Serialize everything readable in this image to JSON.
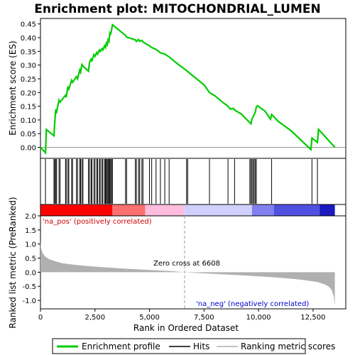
{
  "chart_data": {
    "type": "line",
    "title": "Enrichment plot: MITOCHONDRIAL_LUMEN",
    "xlabel": "Rank in Ordered Dataset",
    "xlim": [
      0,
      14000
    ],
    "x_ticks": [
      0,
      2500,
      5000,
      7500,
      10000,
      12500
    ],
    "x_tick_labels": [
      "0",
      "2,500",
      "5,000",
      "7,500",
      "10,000",
      "12,500"
    ],
    "es_panel": {
      "ylabel": "Enrichment score (ES)",
      "ylim": [
        -0.04,
        0.47
      ],
      "y_ticks": [
        0.0,
        0.05,
        0.1,
        0.15,
        0.2,
        0.25,
        0.3,
        0.35,
        0.4,
        0.45
      ],
      "y_tick_labels": [
        "0.00",
        "0.05",
        "0.10",
        "0.15",
        "0.20",
        "0.25",
        "0.30",
        "0.35",
        "0.40",
        "0.45"
      ],
      "series": [
        {
          "name": "Enrichment profile",
          "color": "#00cc00",
          "x": [
            0,
            230,
            270,
            620,
            650,
            700,
            740,
            850,
            900,
            1150,
            1180,
            1260,
            1300,
            1430,
            1470,
            1650,
            1700,
            1800,
            1840,
            1900,
            1950,
            2200,
            2250,
            2320,
            2360,
            2450,
            2500,
            2580,
            2620,
            2700,
            2740,
            2820,
            2860,
            2940,
            2980,
            3020,
            3060,
            3100,
            3140,
            3180,
            3220,
            3260,
            3300,
            3900,
            3950,
            4350,
            4400,
            4500,
            4550,
            4650,
            4700,
            5000,
            5100,
            5300,
            5500,
            5700,
            5900,
            6200,
            6500,
            6700,
            7000,
            7500,
            7750,
            8000,
            8300,
            8600,
            8700,
            8850,
            8900,
            9200,
            9500,
            9650,
            9700,
            9750,
            9800,
            9850,
            9900,
            9950,
            10300,
            10550,
            10600,
            10900,
            11500,
            12400,
            12450,
            12700,
            12750,
            13500
          ],
          "y": [
            0.0,
            -0.02,
            0.065,
            0.042,
            0.088,
            0.138,
            0.13,
            0.172,
            0.165,
            0.19,
            0.183,
            0.222,
            0.213,
            0.245,
            0.237,
            0.258,
            0.25,
            0.282,
            0.274,
            0.302,
            0.296,
            0.278,
            0.31,
            0.322,
            0.316,
            0.338,
            0.332,
            0.346,
            0.34,
            0.355,
            0.35,
            0.36,
            0.355,
            0.37,
            0.364,
            0.38,
            0.374,
            0.392,
            0.386,
            0.418,
            0.414,
            0.428,
            0.447,
            0.408,
            0.402,
            0.392,
            0.386,
            0.393,
            0.387,
            0.39,
            0.384,
            0.37,
            0.364,
            0.357,
            0.345,
            0.34,
            0.33,
            0.31,
            0.292,
            0.28,
            0.26,
            0.228,
            0.2,
            0.188,
            0.168,
            0.15,
            0.14,
            0.142,
            0.136,
            0.122,
            0.098,
            0.086,
            0.103,
            0.111,
            0.12,
            0.128,
            0.148,
            0.152,
            0.132,
            0.103,
            0.12,
            0.095,
            0.06,
            -0.008,
            0.034,
            0.018,
            0.066,
            0.0
          ]
        }
      ]
    },
    "hits": [
      230,
      620,
      650,
      700,
      740,
      850,
      900,
      1150,
      1180,
      1260,
      1300,
      1430,
      1470,
      1650,
      1700,
      1800,
      1840,
      1900,
      1950,
      2200,
      2250,
      2320,
      2360,
      2450,
      2500,
      2580,
      2620,
      2700,
      2740,
      2820,
      2860,
      2940,
      2980,
      3020,
      3060,
      3100,
      3140,
      3180,
      3220,
      3260,
      3300,
      3900,
      3950,
      4350,
      4400,
      4500,
      4550,
      4650,
      4700,
      5000,
      5100,
      5300,
      5500,
      5700,
      5900,
      6700,
      6750,
      7750,
      8600,
      8900,
      9600,
      9650,
      9700,
      9750,
      9800,
      9850,
      9900,
      10600,
      12450,
      12700
    ],
    "heat_bar": {
      "segments": [
        {
          "from": 0,
          "to": 3300,
          "color": "#ff0000"
        },
        {
          "from": 3300,
          "to": 4800,
          "color": "#ff7070"
        },
        {
          "from": 4800,
          "to": 6600,
          "color": "#ffbcdc"
        },
        {
          "from": 6600,
          "to": 9700,
          "color": "#d0d0ff"
        },
        {
          "from": 9700,
          "to": 10700,
          "color": "#8080f0"
        },
        {
          "from": 10700,
          "to": 12800,
          "color": "#5050e0"
        },
        {
          "from": 12800,
          "to": 13500,
          "color": "#1a1ac0"
        }
      ]
    },
    "metric_panel": {
      "ylabel": "Ranked list metric (PreRanked)",
      "ylim": [
        -1.3,
        2.0
      ],
      "y_ticks": [
        -1.0,
        -0.5,
        0.0,
        0.5,
        1.0,
        1.5,
        2.0
      ],
      "y_tick_labels": [
        "-1.0",
        "-0.5",
        "0.0",
        "0.5",
        "1.0",
        "1.5",
        "2.0"
      ],
      "fill_color": "#b0b0b0",
      "x": [
        0,
        30,
        100,
        200,
        400,
        700,
        1000,
        1500,
        2000,
        2500,
        3000,
        4000,
        5000,
        6000,
        6608,
        7500,
        8500,
        9500,
        10500,
        11500,
        12200,
        12700,
        13000,
        13200,
        13350,
        13450,
        13500
      ],
      "y": [
        1.1,
        0.85,
        0.68,
        0.57,
        0.46,
        0.38,
        0.32,
        0.27,
        0.23,
        0.2,
        0.17,
        0.12,
        0.08,
        0.04,
        0.0,
        -0.04,
        -0.08,
        -0.12,
        -0.17,
        -0.23,
        -0.29,
        -0.35,
        -0.42,
        -0.5,
        -0.62,
        -0.85,
        -1.2
      ],
      "pos_label": "'na_pos' (positively correlated)",
      "neg_label": "'na_neg' (negatively correlated)",
      "zero_cross_label": "Zero cross at 6608",
      "zero_cross": 6608
    },
    "legend": {
      "placement": "bottom",
      "items": [
        {
          "label": "Enrichment profile",
          "color": "#00cc00"
        },
        {
          "label": "Hits",
          "color": "#000000"
        },
        {
          "label": "Ranking metric scores",
          "color": "#b0b0b0"
        }
      ]
    }
  }
}
